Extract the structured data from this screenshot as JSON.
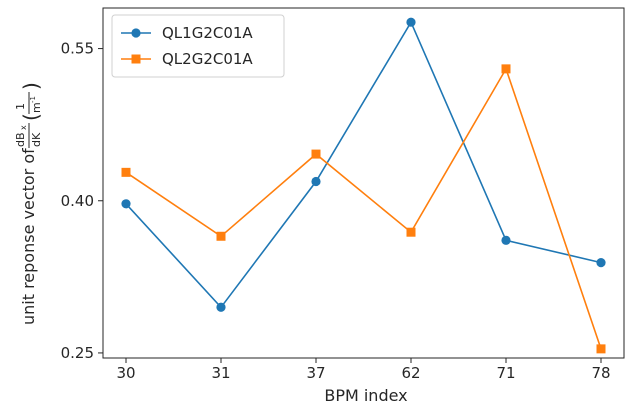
{
  "chart_data": {
    "type": "line",
    "title": "",
    "xlabel": "BPM index",
    "ylabel_prefix": "unit reponse vector of ",
    "ylabel_frac1_num": "dB",
    "ylabel_frac1_num_sub": "x",
    "ylabel_frac1_den": "dK",
    "ylabel_frac2_num": "1",
    "ylabel_frac2_den": "m",
    "ylabel_frac2_den_sup": "-1",
    "categories": [
      "30",
      "31",
      "37",
      "62",
      "71",
      "78"
    ],
    "yticks": [
      "0.25",
      "0.40",
      "0.55"
    ],
    "ytick_values": [
      0.25,
      0.4,
      0.55
    ],
    "ylim": [
      0.245,
      0.59
    ],
    "grid": false,
    "legend_position": "top-left",
    "series": [
      {
        "name": "QL1G2C01A",
        "color": "#1f77b4",
        "marker": "circle",
        "values": [
          0.397,
          0.295,
          0.419,
          0.576,
          0.361,
          0.339
        ]
      },
      {
        "name": "QL2G2C01A",
        "color": "#ff7f0e",
        "marker": "square",
        "values": [
          0.428,
          0.365,
          0.446,
          0.369,
          0.53,
          0.254
        ]
      }
    ]
  }
}
